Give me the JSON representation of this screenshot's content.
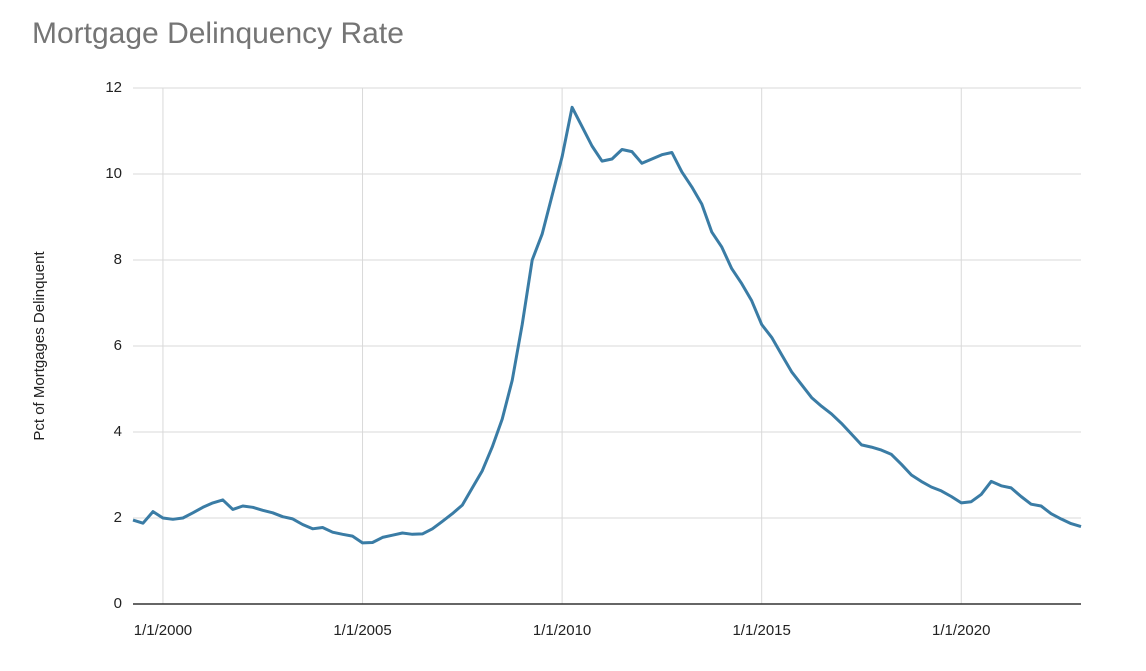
{
  "chart_data": {
    "type": "line",
    "title": "Mortgage Delinquency Rate",
    "y_label": "Pct of Mortgages Delinquent",
    "color": "#3a7ca5",
    "grid": true,
    "x": [
      1999.25,
      1999.5,
      1999.75,
      2000,
      2000.25,
      2000.5,
      2000.75,
      2001,
      2001.25,
      2001.5,
      2001.75,
      2002,
      2002.25,
      2002.5,
      2002.75,
      2003,
      2003.25,
      2003.5,
      2003.75,
      2004,
      2004.25,
      2004.5,
      2004.75,
      2005,
      2005.25,
      2005.5,
      2005.75,
      2006,
      2006.25,
      2006.5,
      2006.75,
      2007,
      2007.25,
      2007.5,
      2007.75,
      2008,
      2008.25,
      2008.5,
      2008.75,
      2009,
      2009.25,
      2009.5,
      2009.75,
      2010,
      2010.25,
      2010.5,
      2010.75,
      2011,
      2011.25,
      2011.5,
      2011.75,
      2012,
      2012.25,
      2012.5,
      2012.75,
      2013,
      2013.25,
      2013.5,
      2013.75,
      2014,
      2014.25,
      2014.5,
      2014.75,
      2015,
      2015.25,
      2015.5,
      2015.75,
      2016,
      2016.25,
      2016.5,
      2016.75,
      2017,
      2017.25,
      2017.5,
      2017.75,
      2018,
      2018.25,
      2018.5,
      2018.75,
      2019,
      2019.25,
      2019.5,
      2019.75,
      2020,
      2020.25,
      2020.5,
      2020.75,
      2021,
      2021.25,
      2021.5,
      2021.75,
      2022,
      2022.25,
      2022.5,
      2022.75,
      2023
    ],
    "values": [
      1.95,
      1.88,
      2.15,
      2.0,
      1.97,
      2.0,
      2.12,
      2.25,
      2.35,
      2.42,
      2.2,
      2.28,
      2.25,
      2.18,
      2.12,
      2.03,
      1.98,
      1.85,
      1.75,
      1.78,
      1.67,
      1.62,
      1.58,
      1.42,
      1.43,
      1.55,
      1.6,
      1.65,
      1.62,
      1.63,
      1.75,
      1.92,
      2.1,
      2.3,
      2.7,
      3.1,
      3.65,
      4.3,
      5.2,
      6.5,
      8.0,
      8.6,
      9.5,
      10.4,
      11.55,
      11.1,
      10.65,
      10.3,
      10.35,
      10.57,
      10.52,
      10.25,
      10.35,
      10.45,
      10.5,
      10.05,
      9.7,
      9.3,
      8.65,
      8.3,
      7.8,
      7.45,
      7.05,
      6.5,
      6.2,
      5.8,
      5.4,
      5.1,
      4.8,
      4.6,
      4.42,
      4.2,
      3.95,
      3.7,
      3.65,
      3.58,
      3.48,
      3.25,
      3.0,
      2.85,
      2.72,
      2.63,
      2.5,
      2.35,
      2.38,
      2.55,
      2.85,
      2.75,
      2.7,
      2.5,
      2.32,
      2.28,
      2.1,
      1.98,
      1.87,
      1.8
    ],
    "xlim": [
      1999.25,
      2023
    ],
    "xticks": [
      {
        "value": 2000,
        "label": "1/1/2000"
      },
      {
        "value": 2005,
        "label": "1/1/2005"
      },
      {
        "value": 2010,
        "label": "1/1/2010"
      },
      {
        "value": 2015,
        "label": "1/1/2015"
      },
      {
        "value": 2020,
        "label": "1/1/2020"
      }
    ],
    "ylim": [
      0,
      12
    ],
    "yticks": [
      0,
      2,
      4,
      6,
      8,
      10,
      12
    ]
  }
}
